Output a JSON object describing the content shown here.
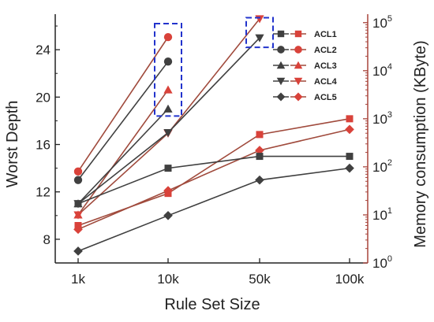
{
  "chart_data": {
    "type": "line",
    "xlabel": "Rule Set Size",
    "ylabel_left": "Worst Depth",
    "ylabel_right": "Memory consumption (KByte)",
    "categories": [
      "1k",
      "10k",
      "50k",
      "100k"
    ],
    "left_axis": {
      "ylim": [
        6,
        27
      ],
      "ticks": [
        "8",
        "12",
        "16",
        "20",
        "24"
      ],
      "tick_values": [
        8,
        12,
        16,
        20,
        24
      ]
    },
    "right_axis": {
      "scale": "log",
      "ylim": [
        1,
        150000
      ],
      "ticks": [
        "0",
        "1",
        "2",
        "3",
        "4",
        "5"
      ],
      "tick_values": [
        1,
        10,
        100,
        1000,
        10000,
        100000
      ],
      "tick_base": "10"
    },
    "colors": {
      "depth": "#404040",
      "memory": "#d9423a",
      "memory_axis": "#a8453c",
      "highlight_box": "#2233cc",
      "memory_line": "#a04a3c"
    },
    "legend_position": "top-right",
    "legend": [
      "ACL1",
      "ACL2",
      "ACL3",
      "ACL4",
      "ACL5"
    ],
    "marker_shapes": [
      "square",
      "circle",
      "triangle-up",
      "triangle-down",
      "diamond"
    ],
    "depth_series": [
      {
        "name": "ACL1",
        "values": [
          11,
          14,
          15,
          15
        ]
      },
      {
        "name": "ACL2",
        "values": [
          13,
          23,
          null,
          null
        ]
      },
      {
        "name": "ACL3",
        "values": [
          11,
          19,
          null,
          null
        ]
      },
      {
        "name": "ACL4",
        "values": [
          11,
          17,
          25,
          null
        ]
      },
      {
        "name": "ACL5",
        "values": [
          7,
          10,
          13,
          14
        ]
      }
    ],
    "memory_series": [
      {
        "name": "ACL1",
        "values": [
          6,
          28,
          470,
          1000
        ]
      },
      {
        "name": "ACL2",
        "values": [
          80,
          50000,
          null,
          null
        ]
      },
      {
        "name": "ACL3",
        "values": [
          10,
          4000,
          null,
          null
        ]
      },
      {
        "name": "ACL4",
        "values": [
          10,
          500,
          120000,
          null
        ]
      },
      {
        "name": "ACL5",
        "values": [
          5,
          32,
          220,
          600
        ]
      }
    ],
    "highlights": [
      {
        "category": "10k",
        "y_range": [
          18.4,
          26.2
        ]
      },
      {
        "category": "50k",
        "y_range": [
          24.2,
          26.7
        ]
      }
    ]
  }
}
